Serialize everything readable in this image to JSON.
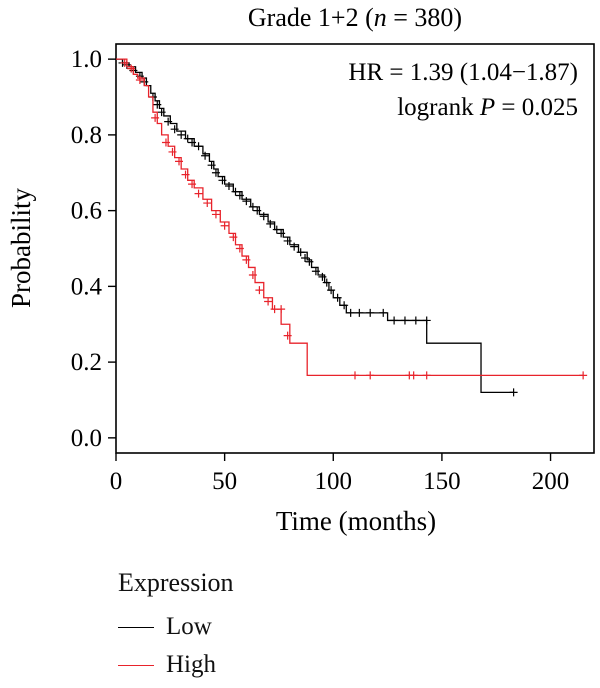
{
  "chart_data": {
    "type": "line",
    "title_prefix": "Grade 1+2 (",
    "title_n": "n",
    "title_suffix": " = 380)",
    "xlabel": "Time (months)",
    "ylabel": "Probability",
    "xlim": [
      0,
      220
    ],
    "ylim": [
      -0.04,
      1.04
    ],
    "xticks": [
      0,
      50,
      100,
      150,
      200
    ],
    "yticks": [
      0.0,
      0.2,
      0.4,
      0.6,
      0.8,
      1.0
    ],
    "ytick_labels": [
      "0.0",
      "0.2",
      "0.4",
      "0.6",
      "0.8",
      "1.0"
    ],
    "xtick_labels": [
      "0",
      "50",
      "100",
      "150",
      "200"
    ],
    "annotation": {
      "hr_text": "HR = 1.39 (1.04−1.87)",
      "logrank_prefix": "logrank ",
      "logrank_p": "P",
      "logrank_suffix": " = 0.025"
    },
    "legend": {
      "title": "Expression",
      "placement": "bottom-left"
    },
    "series": [
      {
        "name": "Low",
        "color": "#000000",
        "steps": [
          [
            0,
            1.0
          ],
          [
            3,
            0.99
          ],
          [
            6,
            0.98
          ],
          [
            9,
            0.965
          ],
          [
            12,
            0.95
          ],
          [
            14,
            0.93
          ],
          [
            16,
            0.91
          ],
          [
            18,
            0.89
          ],
          [
            20,
            0.87
          ],
          [
            22,
            0.85
          ],
          [
            25,
            0.83
          ],
          [
            28,
            0.81
          ],
          [
            32,
            0.79
          ],
          [
            36,
            0.77
          ],
          [
            40,
            0.75
          ],
          [
            43,
            0.73
          ],
          [
            45,
            0.71
          ],
          [
            47,
            0.69
          ],
          [
            50,
            0.67
          ],
          [
            54,
            0.65
          ],
          [
            58,
            0.63
          ],
          [
            62,
            0.61
          ],
          [
            66,
            0.59
          ],
          [
            70,
            0.57
          ],
          [
            73,
            0.55
          ],
          [
            77,
            0.53
          ],
          [
            80,
            0.51
          ],
          [
            84,
            0.49
          ],
          [
            88,
            0.47
          ],
          [
            90,
            0.45
          ],
          [
            93,
            0.43
          ],
          [
            96,
            0.41
          ],
          [
            98,
            0.39
          ],
          [
            100,
            0.37
          ],
          [
            103,
            0.35
          ],
          [
            106,
            0.33
          ],
          [
            125,
            0.31
          ],
          [
            143,
            0.25
          ],
          [
            168,
            0.12
          ],
          [
            183,
            0.12
          ]
        ],
        "censors": [
          [
            3,
            0.99
          ],
          [
            5,
            0.985
          ],
          [
            8,
            0.97
          ],
          [
            11,
            0.955
          ],
          [
            13,
            0.94
          ],
          [
            17,
            0.9
          ],
          [
            19,
            0.88
          ],
          [
            21,
            0.86
          ],
          [
            24,
            0.835
          ],
          [
            27,
            0.815
          ],
          [
            30,
            0.8
          ],
          [
            33,
            0.79
          ],
          [
            35,
            0.78
          ],
          [
            38,
            0.77
          ],
          [
            41,
            0.745
          ],
          [
            44,
            0.72
          ],
          [
            46,
            0.7
          ],
          [
            49,
            0.68
          ],
          [
            52,
            0.665
          ],
          [
            55,
            0.65
          ],
          [
            57,
            0.64
          ],
          [
            60,
            0.625
          ],
          [
            63,
            0.61
          ],
          [
            65,
            0.6
          ],
          [
            68,
            0.585
          ],
          [
            71,
            0.565
          ],
          [
            74,
            0.55
          ],
          [
            76,
            0.54
          ],
          [
            79,
            0.52
          ],
          [
            82,
            0.505
          ],
          [
            85,
            0.49
          ],
          [
            87,
            0.475
          ],
          [
            89,
            0.465
          ],
          [
            92,
            0.44
          ],
          [
            95,
            0.425
          ],
          [
            97,
            0.41
          ],
          [
            99,
            0.39
          ],
          [
            102,
            0.37
          ],
          [
            105,
            0.35
          ],
          [
            108,
            0.33
          ],
          [
            112,
            0.33
          ],
          [
            117,
            0.33
          ],
          [
            123,
            0.33
          ],
          [
            128,
            0.31
          ],
          [
            133,
            0.31
          ],
          [
            138,
            0.31
          ],
          [
            143,
            0.31
          ],
          [
            183,
            0.12
          ]
        ]
      },
      {
        "name": "High",
        "color": "#e8232b",
        "steps": [
          [
            0,
            1.0
          ],
          [
            5,
            0.98
          ],
          [
            8,
            0.96
          ],
          [
            10,
            0.95
          ],
          [
            13,
            0.93
          ],
          [
            15,
            0.9
          ],
          [
            17,
            0.86
          ],
          [
            19,
            0.83
          ],
          [
            21,
            0.8
          ],
          [
            24,
            0.77
          ],
          [
            27,
            0.74
          ],
          [
            30,
            0.71
          ],
          [
            33,
            0.68
          ],
          [
            36,
            0.66
          ],
          [
            40,
            0.63
          ],
          [
            44,
            0.6
          ],
          [
            48,
            0.57
          ],
          [
            52,
            0.54
          ],
          [
            55,
            0.51
          ],
          [
            58,
            0.48
          ],
          [
            61,
            0.45
          ],
          [
            64,
            0.41
          ],
          [
            68,
            0.37
          ],
          [
            72,
            0.34
          ],
          [
            76,
            0.3
          ],
          [
            80,
            0.25
          ],
          [
            88,
            0.165
          ],
          [
            215,
            0.165
          ]
        ],
        "censors": [
          [
            4,
            0.99
          ],
          [
            7,
            0.975
          ],
          [
            11,
            0.945
          ],
          [
            18,
            0.845
          ],
          [
            23,
            0.78
          ],
          [
            26,
            0.755
          ],
          [
            29,
            0.73
          ],
          [
            32,
            0.695
          ],
          [
            35,
            0.67
          ],
          [
            38,
            0.645
          ],
          [
            42,
            0.62
          ],
          [
            46,
            0.59
          ],
          [
            50,
            0.56
          ],
          [
            54,
            0.53
          ],
          [
            57,
            0.5
          ],
          [
            60,
            0.47
          ],
          [
            63,
            0.43
          ],
          [
            66,
            0.39
          ],
          [
            70,
            0.36
          ],
          [
            73,
            0.34
          ],
          [
            76,
            0.34
          ],
          [
            79,
            0.27
          ],
          [
            110,
            0.165
          ],
          [
            117,
            0.165
          ],
          [
            135,
            0.165
          ],
          [
            137,
            0.165
          ],
          [
            143,
            0.165
          ],
          [
            215,
            0.165
          ]
        ]
      }
    ]
  }
}
